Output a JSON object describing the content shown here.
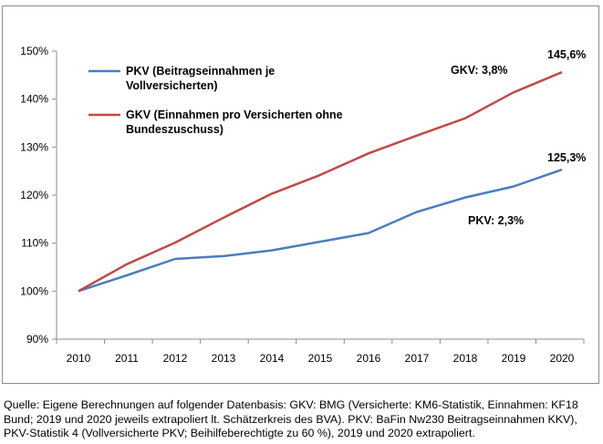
{
  "chart_data": {
    "type": "line",
    "categories": [
      "2010",
      "2011",
      "2012",
      "2013",
      "2014",
      "2015",
      "2016",
      "2017",
      "2018",
      "2019",
      "2020"
    ],
    "y_ticks": [
      "90%",
      "100%",
      "110%",
      "120%",
      "130%",
      "140%",
      "150%"
    ],
    "ylim": [
      90,
      150
    ],
    "grid": false,
    "legend_position": "top-left",
    "series": [
      {
        "key": "pkv",
        "name_lines": [
          "PKV (Beitragseinnahmen je",
          "Vollversicherten)"
        ],
        "color": "#4a7ebb",
        "values": [
          100.0,
          103.3,
          106.7,
          107.3,
          108.5,
          110.3,
          112.1,
          116.5,
          119.5,
          121.8,
          125.3
        ]
      },
      {
        "key": "gkv",
        "name_lines": [
          "GKV (Einnahmen pro Versicherten ohne",
          "Bundeszuschuss)"
        ],
        "color": "#be4b48",
        "values": [
          100.0,
          105.6,
          110.1,
          115.3,
          120.3,
          124.2,
          128.7,
          132.4,
          136.0,
          141.4,
          145.6
        ]
      }
    ],
    "annotations": {
      "gkv_end_value": "145,6%",
      "gkv_growth": "GKV: 3,8%",
      "pkv_end_value": "125,3%",
      "pkv_growth": "PKV: 2,3%"
    }
  },
  "source_lines": [
    "Quelle: Eigene Berechnungen auf folgender Datenbasis: GKV: BMG (Versicherte: KM6-Statistik, Einnahmen: KF18",
    "Bund; 2019 und 2020 jeweils extrapoliert lt. Schätzerkreis des BVA). PKV: BaFin Nw230 Beitragseinnahmen KKV),",
    "PKV-Statistik 4 (Vollversicherte PKV; Beihilfeberechtigte zu 60 %), 2019 und 2020 extrapoliert."
  ]
}
